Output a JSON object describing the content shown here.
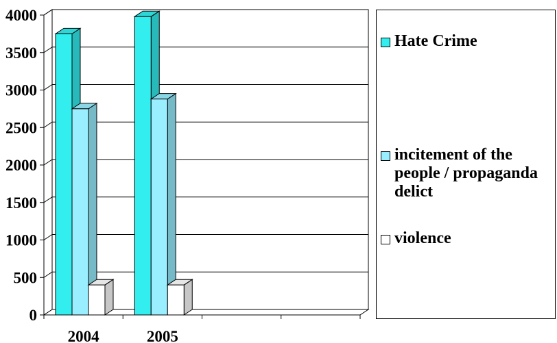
{
  "chart_data": {
    "type": "bar",
    "categories": [
      "2004",
      "2005",
      "",
      ""
    ],
    "series": [
      {
        "name": "Hate Crime",
        "color": "#33eeee",
        "values": [
          3750,
          3980,
          null,
          null
        ]
      },
      {
        "name": "incitement of the people / propaganda delict",
        "color": "#99eeff",
        "values": [
          2750,
          2880,
          null,
          null
        ]
      },
      {
        "name": "violence",
        "color": "#ffffff",
        "values": [
          400,
          400,
          null,
          null
        ]
      }
    ],
    "ylim": [
      0,
      4000
    ],
    "yticks": [
      0,
      500,
      1000,
      1500,
      2000,
      2500,
      3000,
      3500,
      4000
    ],
    "xlabel": "",
    "ylabel": "",
    "title": "",
    "grid": "horizontal",
    "legend_position": "right",
    "style": "3d-clustered-column"
  },
  "legend": {
    "items": [
      {
        "label": "Hate Crime",
        "color": "#33eeee"
      },
      {
        "label": "incitement of the people / propaganda delict",
        "color": "#99eeff"
      },
      {
        "label": "violence",
        "color": "#ffffff"
      }
    ]
  }
}
